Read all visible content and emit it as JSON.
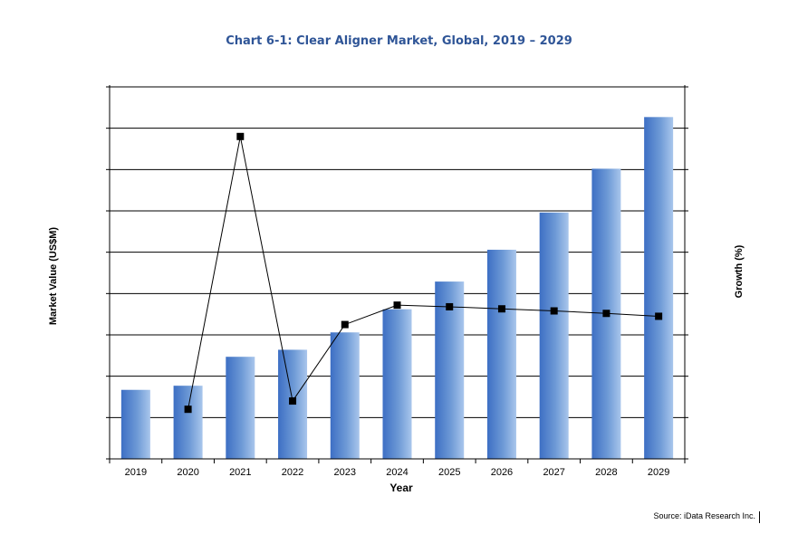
{
  "chart_data": {
    "type": "bar",
    "title": "Chart 6-1: Clear Aligner Market, Global, 2019 – 2029",
    "xlabel": "Year",
    "ylabel": "Market Value (US$M)",
    "y2label": "Growth (%)",
    "categories": [
      "2019",
      "2020",
      "2021",
      "2022",
      "2023",
      "2024",
      "2025",
      "2026",
      "2027",
      "2028",
      "2029"
    ],
    "series": [
      {
        "type": "bar",
        "axis": "left",
        "color": "#4472c4",
        "values": [
          1.67,
          1.77,
          2.47,
          2.64,
          3.06,
          3.62,
          4.29,
          5.06,
          5.96,
          7.02,
          8.27
        ]
      },
      {
        "type": "line",
        "axis": "right",
        "color": "#000000",
        "values": [
          null,
          1.2,
          7.8,
          1.4,
          3.25,
          3.72,
          3.68,
          3.63,
          3.58,
          3.52,
          3.45
        ]
      }
    ],
    "ylim": [
      0,
      9
    ],
    "y2lim": [
      0,
      9
    ],
    "grid": true,
    "source": "Source: iData Research Inc."
  }
}
